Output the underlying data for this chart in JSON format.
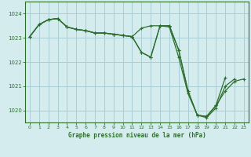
{
  "title": "Graphe pression niveau de la mer (hPa)",
  "background_color": "#d4ecee",
  "grid_color": "#aacdd4",
  "line_color": "#2d6e2d",
  "ylim": [
    1019.5,
    1024.5
  ],
  "yticks": [
    1020,
    1021,
    1022,
    1023,
    1024
  ],
  "xlim": [
    -0.5,
    23.5
  ],
  "xticks": [
    0,
    1,
    2,
    3,
    4,
    5,
    6,
    7,
    8,
    9,
    10,
    11,
    12,
    13,
    14,
    15,
    16,
    17,
    18,
    19,
    20,
    21,
    22,
    23
  ],
  "series1_x": [
    0,
    1,
    2,
    3,
    4,
    5,
    6,
    7,
    8,
    9,
    10,
    11,
    12,
    13,
    14,
    15,
    16,
    17,
    18,
    19,
    20,
    21,
    22,
    23
  ],
  "series1_y": [
    1023.05,
    1023.55,
    1023.75,
    1023.8,
    1023.45,
    1023.35,
    1023.3,
    1023.2,
    1023.2,
    1023.15,
    1023.1,
    1023.05,
    1022.4,
    1022.2,
    1023.5,
    1023.5,
    1022.5,
    1020.8,
    1019.8,
    1019.75,
    1020.2,
    1020.8,
    1021.2,
    1021.3
  ],
  "series2_x": [
    0,
    1,
    2,
    3,
    4,
    5,
    6,
    7,
    8,
    9,
    10,
    11,
    12,
    13,
    14,
    15,
    16,
    17,
    18,
    19,
    20,
    21,
    22
  ],
  "series2_y": [
    1023.05,
    1023.55,
    1023.75,
    1023.8,
    1023.45,
    1023.35,
    1023.3,
    1023.2,
    1023.2,
    1023.15,
    1023.1,
    1023.05,
    1023.4,
    1023.5,
    1023.5,
    1023.45,
    1022.2,
    1020.7,
    1019.8,
    1019.7,
    1020.1,
    1021.0,
    1021.3
  ],
  "series3_x": [
    0,
    1,
    2,
    3,
    4,
    5,
    6,
    7,
    8,
    9,
    10,
    11,
    12,
    13,
    14,
    15,
    16,
    17,
    18,
    19,
    20,
    21
  ],
  "series3_y": [
    1023.05,
    1023.55,
    1023.75,
    1023.8,
    1023.45,
    1023.35,
    1023.3,
    1023.2,
    1023.2,
    1023.15,
    1023.1,
    1023.05,
    1022.4,
    1022.2,
    1023.5,
    1023.5,
    1022.5,
    1020.8,
    1019.8,
    1019.75,
    1020.2,
    1021.35
  ],
  "title_fontsize": 5.5,
  "tick_fontsize": 4.5
}
